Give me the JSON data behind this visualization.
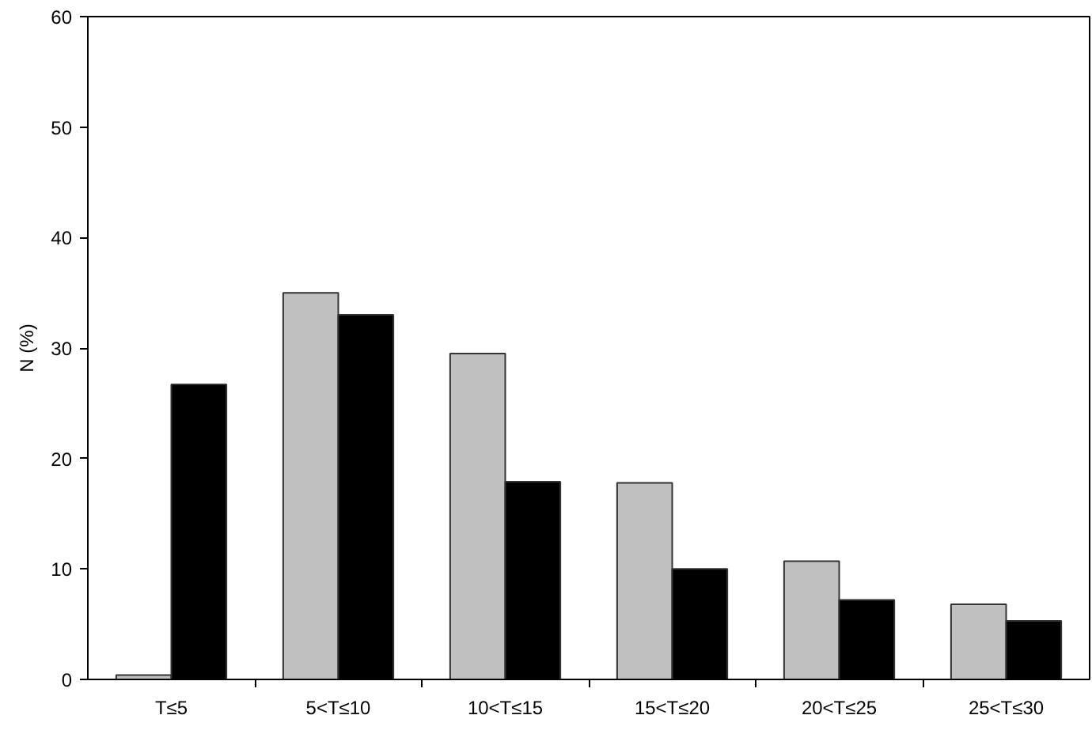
{
  "chart_data": {
    "type": "bar",
    "ylabel": "N (%)",
    "categories": [
      "T≤5",
      "5<T≤10",
      "10<T≤15",
      "15<T≤20",
      "20<T≤25",
      "25<T≤30"
    ],
    "series": [
      {
        "color": "#c0c0c0",
        "values": [
          0.4,
          35,
          29.5,
          17.8,
          10.7,
          6.8
        ]
      },
      {
        "color": "#000000",
        "values": [
          26.7,
          33,
          17.9,
          10,
          7.2,
          5.3
        ]
      }
    ],
    "ylim": [
      0,
      60
    ],
    "yticks": [
      0,
      10,
      20,
      30,
      40,
      50,
      60
    ],
    "grid": false
  }
}
